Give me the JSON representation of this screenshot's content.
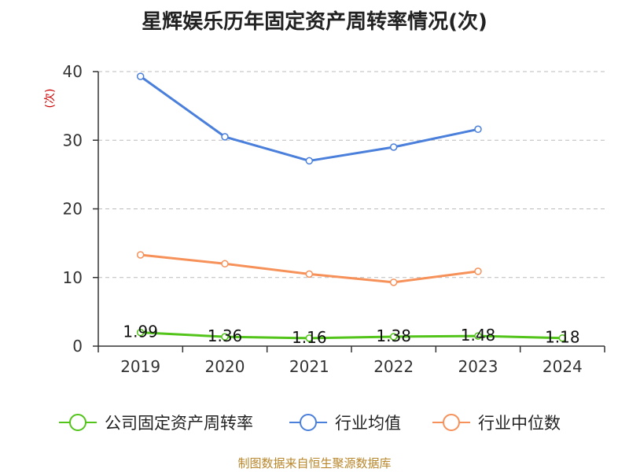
{
  "chart_data": {
    "type": "line",
    "title": "星辉娱乐历年固定资产周转率情况(次)",
    "ylabel": "(次)",
    "xlabel": "",
    "categories": [
      "2019",
      "2020",
      "2021",
      "2022",
      "2023",
      "2024"
    ],
    "ylim": [
      0,
      40
    ],
    "yticks": [
      0,
      10,
      20,
      30,
      40
    ],
    "grid": true,
    "legend_position": "bottom",
    "series": [
      {
        "name": "公司固定资产周转率",
        "color": "#52c41a",
        "values": [
          1.99,
          1.36,
          1.16,
          1.38,
          1.48,
          1.18
        ],
        "labels": [
          "1.99",
          "1.36",
          "1.16",
          "1.38",
          "1.48",
          "1.18"
        ],
        "show_labels": true
      },
      {
        "name": "行业均值",
        "color": "#4a7fdb",
        "values": [
          39.3,
          30.5,
          27.0,
          29.0,
          31.6,
          null
        ],
        "show_labels": false
      },
      {
        "name": "行业中位数",
        "color": "#f7915a",
        "values": [
          13.3,
          12.0,
          10.5,
          9.3,
          10.9,
          null
        ],
        "show_labels": false
      }
    ]
  },
  "footer": {
    "source": "制图数据来自恒生聚源数据库"
  }
}
